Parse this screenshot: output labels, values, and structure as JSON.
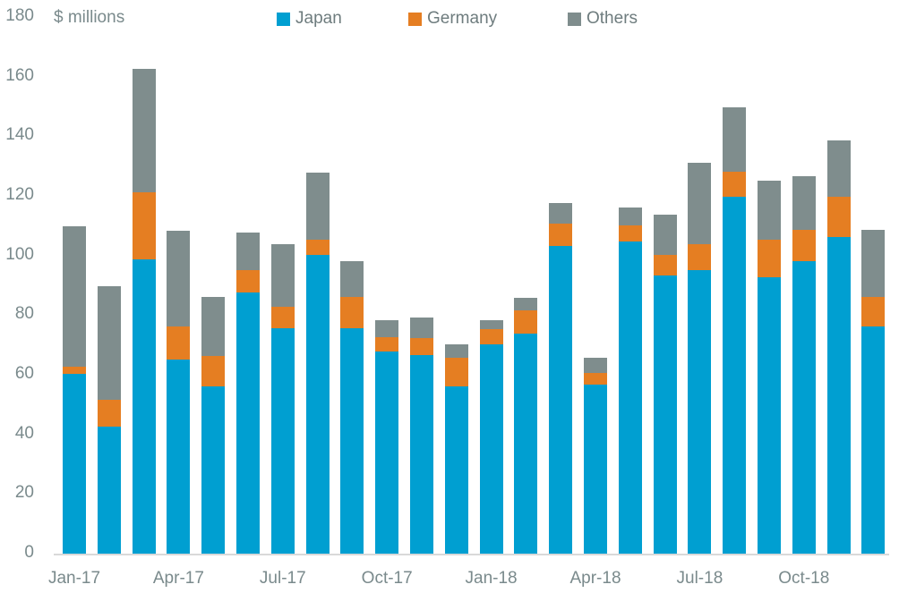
{
  "chart": {
    "unit_label": "$ millions"
  },
  "chart_data": {
    "type": "bar",
    "stacked": true,
    "title": "",
    "xlabel": "",
    "ylabel": "$ millions",
    "ylim": [
      0,
      180
    ],
    "y_ticks": [
      0,
      20,
      40,
      60,
      80,
      100,
      120,
      140,
      160,
      180
    ],
    "grid": false,
    "legend_position": "top",
    "categories": [
      "Jan-17",
      "Feb-17",
      "Mar-17",
      "Apr-17",
      "May-17",
      "Jun-17",
      "Jul-17",
      "Aug-17",
      "Sep-17",
      "Oct-17",
      "Nov-17",
      "Dec-17",
      "Jan-18",
      "Feb-18",
      "Mar-18",
      "Apr-18",
      "May-18",
      "Jun-18",
      "Jul-18",
      "Aug-18",
      "Sep-18",
      "Oct-18",
      "Nov-18",
      "Dec-18"
    ],
    "x_tick_labels_shown": [
      "Jan-17",
      "Apr-17",
      "Jul-17",
      "Oct-17",
      "Jan-18",
      "Apr-18",
      "Jul-18",
      "Oct-18"
    ],
    "x_tick_every": 3,
    "series": [
      {
        "name": "Japan",
        "color": "#009FD1",
        "values": [
          60.5,
          43,
          99,
          65.5,
          56.5,
          88,
          76,
          100.5,
          76,
          68,
          67,
          56.5,
          70.5,
          74,
          103.5,
          57,
          105,
          93.5,
          95.5,
          120,
          93,
          98.5,
          106.5,
          76.5
        ]
      },
      {
        "name": "Germany",
        "color": "#E57E22",
        "values": [
          2.5,
          9,
          22.5,
          11,
          10,
          7.5,
          7,
          5,
          10.5,
          5,
          5.5,
          9.5,
          5,
          8,
          7.5,
          4,
          5.5,
          7,
          8.5,
          8.5,
          12.5,
          10.5,
          13.5,
          10
        ]
      },
      {
        "name": "Others",
        "color": "#7F8D8D",
        "values": [
          47,
          38,
          41.5,
          32,
          20,
          12.5,
          21,
          22.5,
          12,
          5.5,
          7,
          4.5,
          3,
          4,
          7,
          5,
          6,
          13.5,
          27.5,
          21.5,
          20,
          18,
          19,
          22.5
        ]
      }
    ],
    "totals": [
      110,
      90,
      163,
      108.5,
      86.5,
      108,
      104,
      128,
      98.5,
      78.5,
      79.5,
      70.5,
      78.5,
      86,
      118,
      66,
      116.5,
      114,
      131.5,
      150,
      125.5,
      127,
      139,
      109
    ]
  }
}
